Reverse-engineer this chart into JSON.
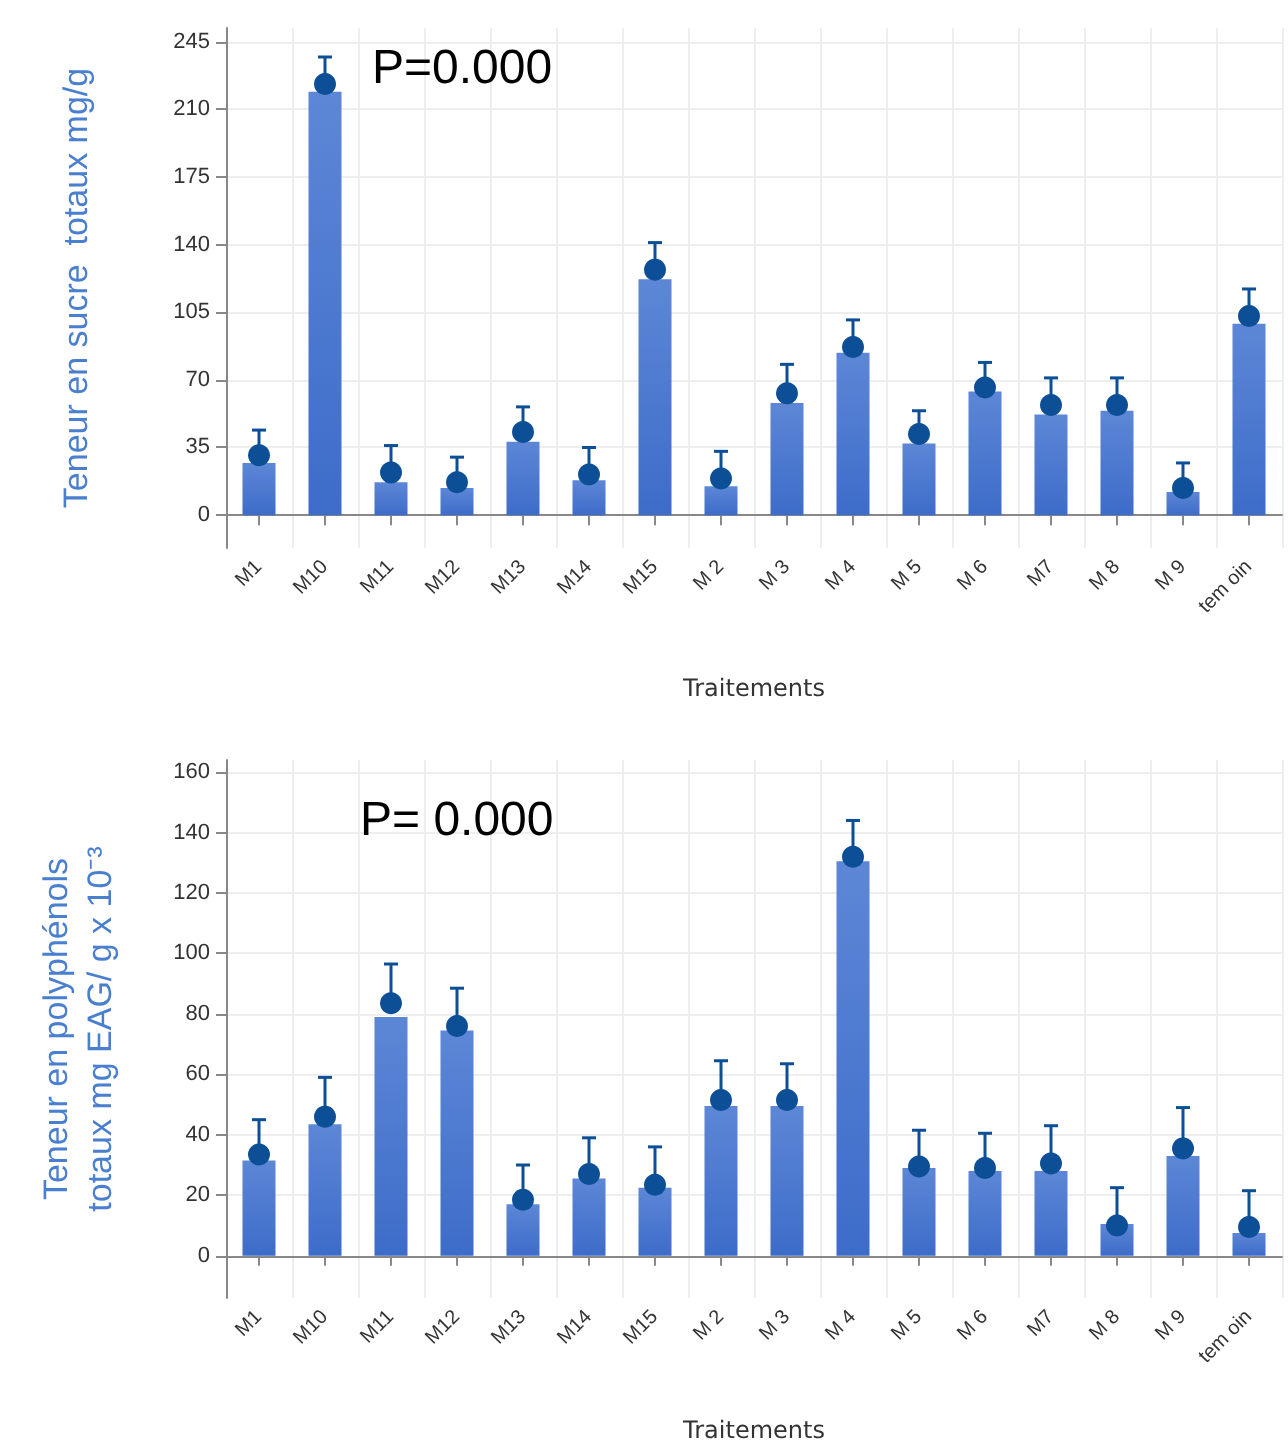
{
  "chart_data": [
    {
      "type": "bar",
      "ylabel": "Teneur en sucre  totaux mg/g",
      "xlabel": "Traitements",
      "annotations": [
        "P=0.000"
      ],
      "categories": [
        "M1",
        "M10",
        "M11",
        "M12",
        "M13",
        "M14",
        "M15",
        "M 2",
        "M 3",
        "M 4",
        "M 5",
        "M 6",
        "M7",
        "M 8",
        "M 9",
        "tem oin"
      ],
      "series": [
        {
          "color": "#3d6cc9",
          "values": [
            27,
            219,
            17,
            14,
            38,
            18,
            122,
            15,
            58,
            84,
            37,
            64,
            52,
            54,
            12,
            99
          ]
        },
        {
          "type": "scatter",
          "color": "#0d4f97",
          "x": [
            "M1",
            "M10",
            "M11",
            "M12",
            "M13",
            "M14",
            "M15",
            "M 2",
            "M 3",
            "M 4",
            "M 5",
            "M 6",
            "M7",
            "M 8",
            "M 9",
            "tem oin"
          ],
          "values": [
            31,
            223,
            22,
            17,
            43,
            21,
            127,
            19,
            63,
            87,
            42,
            66,
            57,
            57,
            14,
            103
          ],
          "errors": [
            [
              31,
              44
            ],
            [
              223,
              237
            ],
            [
              22,
              36
            ],
            [
              17,
              30
            ],
            [
              43,
              56
            ],
            [
              21,
              35
            ],
            [
              127,
              141
            ],
            [
              19,
              33
            ],
            [
              63,
              78
            ],
            [
              87,
              101
            ],
            [
              42,
              54
            ],
            [
              66,
              79
            ],
            [
              57,
              71
            ],
            [
              57,
              71
            ],
            [
              14,
              27
            ],
            [
              103,
              117
            ]
          ]
        }
      ],
      "ylim": [
        -17,
        252
      ],
      "yticks": [
        0,
        35,
        70,
        105,
        140,
        175,
        210,
        245
      ],
      "grid": true,
      "marker": "circle"
    },
    {
      "type": "bar",
      "ylabel": "Teneur en polyphénols\ntotaux mg EAG/ g x 10⁻³",
      "xlabel": "Traitements",
      "annotations": [
        "P= 0.000"
      ],
      "categories": [
        "M1",
        "M10",
        "M11",
        "M12",
        "M13",
        "M14",
        "M15",
        "M 2",
        "M 3",
        "M 4",
        "M 5",
        "M 6",
        "M7",
        "M 8",
        "M 9",
        "tem oin"
      ],
      "series": [
        {
          "color": "#3d6cc9",
          "values": [
            31.5,
            43.5,
            79,
            74.5,
            17,
            25.5,
            22.5,
            49.5,
            49.5,
            130.5,
            29,
            28,
            28,
            10.5,
            33,
            7.5
          ]
        },
        {
          "type": "scatter",
          "color": "#0d4f97",
          "x": [
            "M1",
            "M10",
            "M11",
            "M12",
            "M13",
            "M14",
            "M15",
            "M 2",
            "M 3",
            "M 4",
            "M 5",
            "M 6",
            "M7",
            "M 8",
            "M 9",
            "tem oin"
          ],
          "values": [
            33.5,
            46,
            83.5,
            76,
            18.5,
            27,
            23.5,
            51.5,
            51.5,
            132,
            29.5,
            29,
            30.5,
            10,
            35.5,
            9.5
          ],
          "errors": [
            [
              33.5,
              45
            ],
            [
              46,
              59
            ],
            [
              83.5,
              96.5
            ],
            [
              76,
              88.5
            ],
            [
              18.5,
              30
            ],
            [
              27,
              39
            ],
            [
              23.5,
              36
            ],
            [
              51.5,
              64.5
            ],
            [
              51.5,
              63.5
            ],
            [
              132,
              144
            ],
            [
              29.5,
              41.5
            ],
            [
              29,
              40.5
            ],
            [
              30.5,
              43
            ],
            [
              10,
              22.5
            ],
            [
              35.5,
              49
            ],
            [
              9.5,
              21.5
            ]
          ]
        }
      ],
      "ylim": [
        -14,
        164
      ],
      "yticks": [
        0,
        20,
        40,
        60,
        80,
        100,
        120,
        140,
        160
      ],
      "grid": true,
      "marker": "circle"
    }
  ]
}
